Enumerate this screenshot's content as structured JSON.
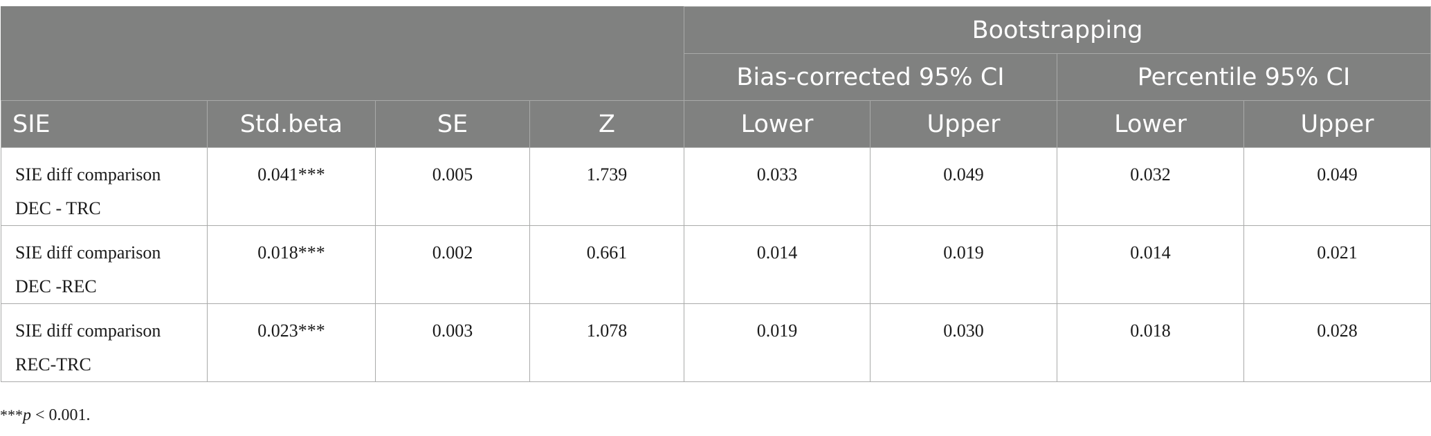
{
  "table": {
    "group_header": "Bootstrapping",
    "subgroup_headers": [
      "Bias-corrected 95% CI",
      "Percentile 95% CI"
    ],
    "columns": [
      "SIE",
      "Std.beta",
      "SE",
      "Z",
      "Lower",
      "Upper",
      "Lower",
      "Upper"
    ],
    "rows": [
      {
        "label_line1": "SIE diff comparison",
        "label_line2": "DEC - TRC",
        "std_beta": "0.041***",
        "se": "0.005",
        "z": "1.739",
        "bc_lower": "0.033",
        "bc_upper": "0.049",
        "pc_lower": "0.032",
        "pc_upper": "0.049"
      },
      {
        "label_line1": "SIE diff comparison",
        "label_line2": "DEC -REC",
        "std_beta": "0.018***",
        "se": "0.002",
        "z": "0.661",
        "bc_lower": "0.014",
        "bc_upper": "0.019",
        "pc_lower": "0.014",
        "pc_upper": "0.021"
      },
      {
        "label_line1": "SIE diff comparison",
        "label_line2": "REC-TRC",
        "std_beta": "0.023***",
        "se": "0.003",
        "z": "1.078",
        "bc_lower": "0.019",
        "bc_upper": "0.030",
        "pc_lower": "0.018",
        "pc_upper": "0.028"
      }
    ]
  },
  "footnote": {
    "stars": "***",
    "p_symbol": "p",
    "rest": " < 0.001."
  },
  "colors": {
    "header_bg": "#808180",
    "header_text": "#ffffff",
    "grid": "#a9aaa9"
  }
}
